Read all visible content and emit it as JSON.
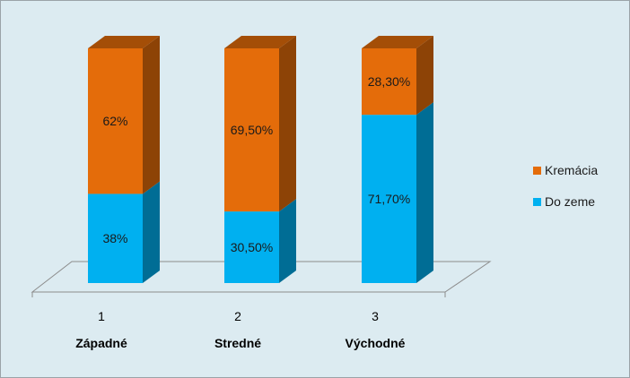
{
  "chart_data": {
    "type": "bar",
    "stacked": true,
    "percent_stacked": true,
    "three_d": true,
    "categories": [
      "1",
      "2",
      "3"
    ],
    "category_names": [
      "Západné",
      "Stredné",
      "Východné"
    ],
    "series": [
      {
        "name": "Do zeme",
        "values": [
          38,
          30.5,
          71.7
        ],
        "labels": [
          "38%",
          "30,50%",
          "71,70%"
        ],
        "color": "#00b0f0"
      },
      {
        "name": "Kremácia",
        "values": [
          62,
          69.5,
          28.3
        ],
        "labels": [
          "62%",
          "69,50%",
          "28,30%"
        ],
        "color": "#e46c0a"
      }
    ],
    "ylim": [
      0,
      100
    ],
    "grid": false,
    "legend_position": "right",
    "legend_order": [
      "Kremácia",
      "Do zeme"
    ],
    "background": "#dcebf1"
  }
}
